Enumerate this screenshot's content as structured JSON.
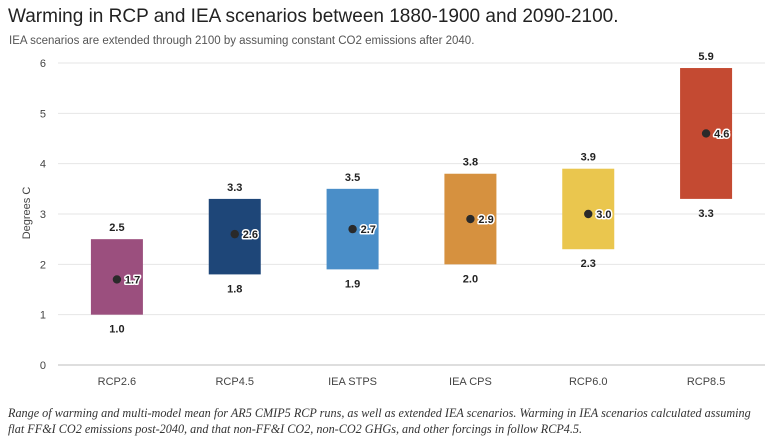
{
  "chart_data": {
    "type": "bar",
    "title": "Warming in RCP and IEA scenarios between 1880-1900 and 2090-2100.",
    "subtitle": "IEA scenarios are extended through 2100 by assuming constant CO2 emissions after 2040.",
    "ylabel": "Degrees C",
    "xlabel": "",
    "ylim": [
      0,
      6
    ],
    "yticks": [
      0,
      1,
      2,
      3,
      4,
      5,
      6
    ],
    "grid": true,
    "categories": [
      "RCP2.6",
      "RCP4.5",
      "IEA STPS",
      "IEA CPS",
      "RCP6.0",
      "RCP8.5"
    ],
    "low": [
      1.0,
      1.8,
      1.9,
      2.0,
      2.3,
      3.3
    ],
    "high": [
      2.5,
      3.3,
      3.5,
      3.8,
      3.9,
      5.9
    ],
    "mean": [
      1.7,
      2.6,
      2.7,
      2.9,
      3.0,
      4.6
    ],
    "colors": [
      "#9b4f7e",
      "#1e4678",
      "#4a8ec8",
      "#d6913f",
      "#eac64e",
      "#c44a32"
    ],
    "mean_marker_color": "#2a2a2a",
    "grid_color": "#e6e6e6",
    "caption": "Range of warming and multi-model mean for AR5 CMIP5 RCP runs, as well as extended IEA scenarios. Warming in IEA scenarios calculated assuming flat FF&I CO2 emissions post-2040, and that non-FF&I CO2, non-CO2 GHGs, and other forcings in follow RCP4.5."
  }
}
